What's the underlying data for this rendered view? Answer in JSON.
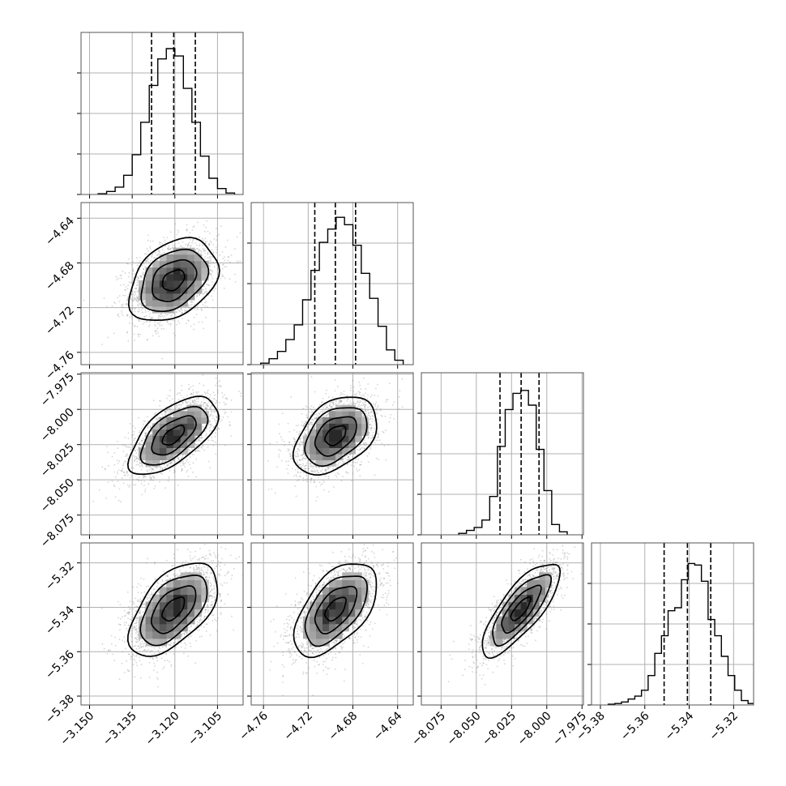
{
  "chart_data": {
    "type": "corner",
    "grid": true,
    "quantile_lines": "dashed",
    "parameters": [
      {
        "range": [
          -3.153,
          -3.096
        ],
        "quantiles": [
          -3.1282,
          -3.1204,
          -3.1128
        ],
        "ticks": [
          -3.15,
          -3.135,
          -3.12,
          -3.105
        ],
        "tick_labels": [
          "−3.150",
          "−3.135",
          "−3.120",
          "−3.105"
        ],
        "hist_edges": [
          -3.147,
          -3.144,
          -3.141,
          -3.138,
          -3.135,
          -3.132,
          -3.129,
          -3.126,
          -3.123,
          -3.12,
          -3.117,
          -3.114,
          -3.111,
          -3.108,
          -3.105,
          -3.102,
          -3.099
        ],
        "hist_values": [
          0.005,
          0.02,
          0.05,
          0.13,
          0.27,
          0.49,
          0.74,
          0.92,
          0.99,
          0.94,
          0.72,
          0.49,
          0.26,
          0.11,
          0.04,
          0.01
        ]
      },
      {
        "range": [
          -4.771,
          -4.626
        ],
        "quantiles": [
          -4.7141,
          -4.6957,
          -4.6776
        ],
        "ticks": [
          -4.76,
          -4.72,
          -4.68,
          -4.64
        ],
        "tick_labels": [
          "−4.76",
          "−4.72",
          "−4.68",
          "−4.64"
        ],
        "hist_edges": [
          -4.7625,
          -4.755,
          -4.7475,
          -4.74,
          -4.7325,
          -4.725,
          -4.7175,
          -4.71,
          -4.7025,
          -4.695,
          -4.6875,
          -4.68,
          -4.6725,
          -4.665,
          -4.6575,
          -4.65,
          -4.6425,
          -4.635
        ],
        "hist_values": [
          0.01,
          0.04,
          0.09,
          0.17,
          0.27,
          0.44,
          0.64,
          0.83,
          0.92,
          1.0,
          0.95,
          0.81,
          0.62,
          0.45,
          0.26,
          0.1,
          0.03
        ]
      },
      {
        "range": [
          -8.089,
          -7.974
        ],
        "quantiles": [
          -8.0332,
          -8.0182,
          -8.0055
        ],
        "ticks": [
          -8.075,
          -8.05,
          -8.025,
          -8.0,
          -7.975
        ],
        "tick_labels": [
          "−8.075",
          "−8.050",
          "−8.025",
          "−8.000",
          "−7.975"
        ],
        "hist_edges": [
          -8.0625,
          -8.057,
          -8.0515,
          -8.046,
          -8.0405,
          -8.035,
          -8.0295,
          -8.024,
          -8.0185,
          -8.013,
          -8.0075,
          -8.002,
          -7.9965,
          -7.991,
          -7.9855
        ],
        "hist_values": [
          0.01,
          0.03,
          0.05,
          0.1,
          0.26,
          0.6,
          0.85,
          0.96,
          0.98,
          0.88,
          0.58,
          0.3,
          0.07,
          0.02
        ]
      },
      {
        "range": [
          -5.384,
          -5.311
        ],
        "quantiles": [
          -5.3513,
          -5.3408,
          -5.3303
        ],
        "ticks": [
          -5.38,
          -5.36,
          -5.34,
          -5.32
        ],
        "tick_labels": [
          "−5.38",
          "−5.36",
          "−5.34",
          "−5.32"
        ],
        "hist_edges": [
          -5.3765,
          -5.3735,
          -5.3705,
          -5.3675,
          -5.3645,
          -5.3615,
          -5.3585,
          -5.3555,
          -5.3525,
          -5.3495,
          -5.3465,
          -5.3435,
          -5.3405,
          -5.3375,
          -5.3345,
          -5.3315,
          -5.3285,
          -5.3255,
          -5.3225,
          -5.3195,
          -5.3165,
          -5.3135,
          -5.3105
        ],
        "hist_values": [
          0.005,
          0.01,
          0.02,
          0.04,
          0.06,
          0.1,
          0.2,
          0.35,
          0.47,
          0.64,
          0.66,
          0.85,
          0.96,
          0.95,
          0.84,
          0.58,
          0.47,
          0.33,
          0.2,
          0.1,
          0.03,
          0.01
        ]
      }
    ],
    "pairs": [
      {
        "x": 0,
        "y": 1,
        "mean": [
          -3.1205,
          -4.6955
        ],
        "std": [
          0.0078,
          0.0185
        ],
        "corr": 0.35
      },
      {
        "x": 0,
        "y": 2,
        "mean": [
          -3.1205,
          -8.0185
        ],
        "std": [
          0.0078,
          0.0138
        ],
        "corr": 0.62
      },
      {
        "x": 0,
        "y": 3,
        "mean": [
          -3.1205,
          -5.3408
        ],
        "std": [
          0.0078,
          0.0105
        ],
        "corr": 0.55
      },
      {
        "x": 1,
        "y": 2,
        "mean": [
          -4.6955,
          -8.0185
        ],
        "std": [
          0.0185,
          0.0138
        ],
        "corr": 0.42
      },
      {
        "x": 1,
        "y": 3,
        "mean": [
          -4.6955,
          -5.3408
        ],
        "std": [
          0.0185,
          0.0105
        ],
        "corr": 0.55
      },
      {
        "x": 2,
        "y": 3,
        "mean": [
          -8.0185,
          -5.3408
        ],
        "std": [
          0.0138,
          0.0105
        ],
        "corr": 0.78
      }
    ],
    "contour_sigma_levels": [
      0.5,
      1.0,
      1.5,
      2.0
    ],
    "colors": {
      "line": "#000000",
      "grid": "#b0b0b0",
      "points": "#888888"
    }
  }
}
